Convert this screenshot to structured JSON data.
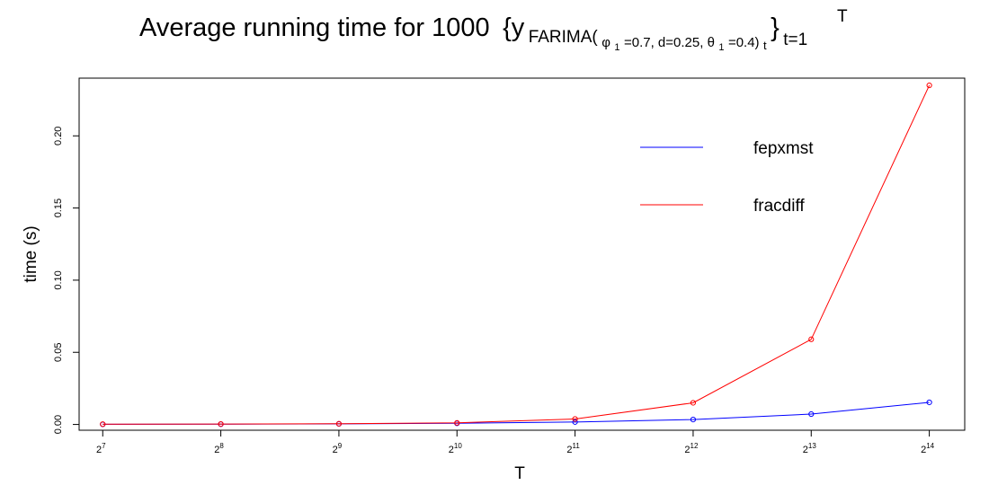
{
  "chart_data": {
    "type": "line",
    "title": {
      "main": "Average running time for 1000",
      "brace_open": "{y",
      "sub_model": "FARIMA(",
      "phi": "φ",
      "phi_sub": "1",
      "params_mid": "=0.7, d=0.25, ",
      "theta": "θ",
      "theta_sub": "1",
      "params_end": "=0.4)",
      "t_sub": "t",
      "brace_close": "}",
      "sup_T": "T",
      "sub_range": "t=1"
    },
    "xlabel": "T",
    "ylabel": "time (s)",
    "x": [
      7,
      8,
      9,
      10,
      11,
      12,
      13,
      14
    ],
    "x_ticks": [
      {
        "base": "2",
        "exp": "7"
      },
      {
        "base": "2",
        "exp": "8"
      },
      {
        "base": "2",
        "exp": "9"
      },
      {
        "base": "2",
        "exp": "10"
      },
      {
        "base": "2",
        "exp": "11"
      },
      {
        "base": "2",
        "exp": "12"
      },
      {
        "base": "2",
        "exp": "13"
      },
      {
        "base": "2",
        "exp": "14"
      }
    ],
    "y_ticks": [
      "0.00",
      "0.05",
      "0.10",
      "0.15",
      "0.20"
    ],
    "y_tick_values": [
      0,
      0.05,
      0.1,
      0.15,
      0.2
    ],
    "ylim": [
      -0.004,
      0.24
    ],
    "xlim": [
      6.8,
      14.3
    ],
    "series": [
      {
        "name": "fepxmst",
        "color": "#0000ff",
        "values": [
          0.0001,
          0.0002,
          0.0004,
          0.0008,
          0.0017,
          0.0034,
          0.0072,
          0.0153
        ]
      },
      {
        "name": "fracdiff",
        "color": "#ff0000",
        "values": [
          0.0002,
          0.0003,
          0.0005,
          0.0011,
          0.0038,
          0.015,
          0.059,
          0.235
        ]
      }
    ],
    "legend": {
      "position": "top-right"
    },
    "grid": false
  }
}
